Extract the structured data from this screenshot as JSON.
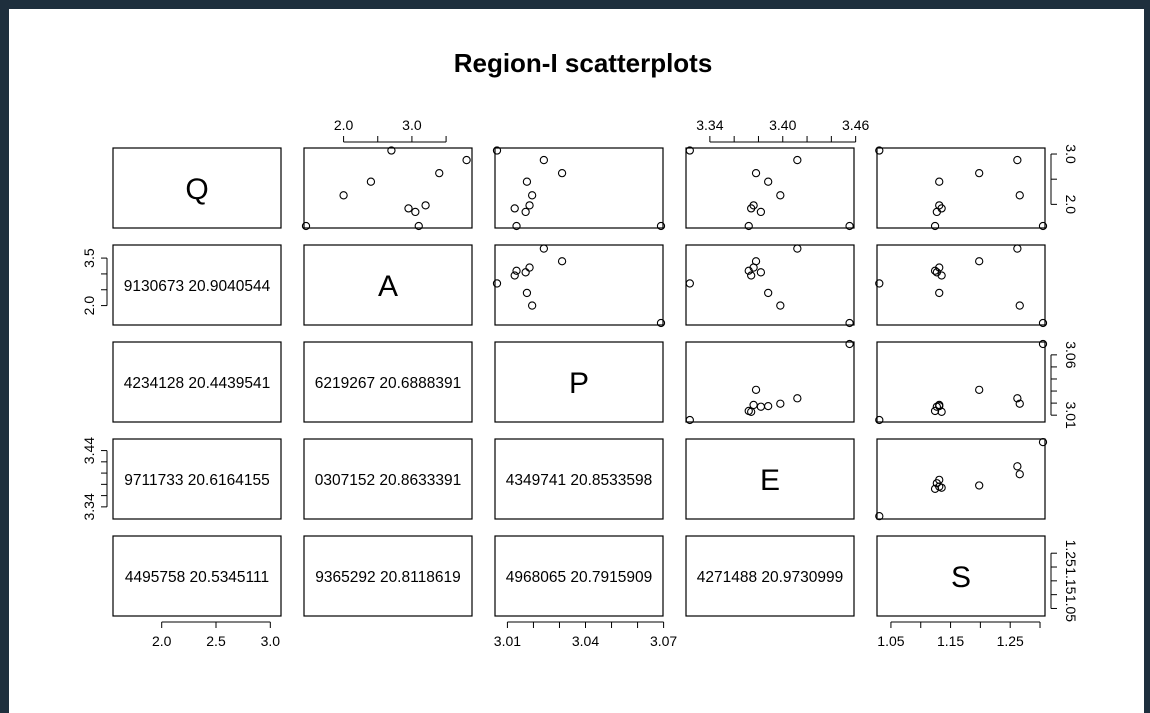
{
  "chart_data": {
    "type": "scatter",
    "title": "Region-I scatterplots",
    "variables": [
      "Q",
      "A",
      "P",
      "E",
      "S"
    ],
    "observations": {
      "Q": [
        1.57,
        1.85,
        1.92,
        1.98,
        2.18,
        2.45,
        2.62,
        2.88,
        3.07,
        1.57
      ],
      "A": [
        3.1,
        3.05,
        2.95,
        3.2,
        2.0,
        2.4,
        3.4,
        3.8,
        2.7,
        1.45
      ],
      "P": [
        3.0135,
        3.017,
        3.0128,
        3.0185,
        3.0195,
        3.0175,
        3.031,
        3.024,
        3.006,
        3.069
      ],
      "E": [
        3.372,
        3.382,
        3.374,
        3.376,
        3.398,
        3.388,
        3.378,
        3.412,
        3.3235,
        3.455
      ],
      "S": [
        1.124,
        1.127,
        1.135,
        1.131,
        1.266,
        1.131,
        1.198,
        1.262,
        1.0305,
        1.305
      ]
    },
    "pairs_shown": "lower-triangle panels print correlation text (truncated at panel edges); upper-triangle panels show pairwise scatter",
    "lower_panel_text": {
      "A_Q": "9130673 20.9040544",
      "P_Q": "4234128 20.4439541",
      "P_A": "6219267 20.6888391",
      "E_Q": "9711733 20.6164155",
      "E_A": "0307152 20.8633391",
      "E_P": "4349741 20.8533598",
      "S_Q": "4495758 20.5345111",
      "S_A": "9365292 20.8118619",
      "S_P": "4968065 20.7915909",
      "S_E": "4271488 20.9730999"
    },
    "axes": {
      "Q": {
        "ticks": [
          "2.0",
          "2.5",
          "3.0"
        ],
        "tick_values": [
          2.0,
          2.5,
          3.0
        ],
        "range": [
          1.57,
          3.08
        ]
      },
      "A": {
        "ticks": [
          "2.0",
          "3.5"
        ],
        "tick_values": [
          2.0,
          3.5
        ],
        "range": [
          1.45,
          3.85
        ]
      },
      "P": {
        "ticks": [
          "3.01",
          "3.04",
          "3.07"
        ],
        "tick_values": [
          3.01,
          3.04,
          3.07
        ],
        "range": [
          3.006,
          3.069
        ]
      },
      "E": {
        "ticks": [
          "3.34",
          "3.40",
          "3.46"
        ],
        "tick_values": [
          3.34,
          3.4,
          3.46
        ],
        "range": [
          3.322,
          3.457
        ]
      },
      "S": {
        "ticks": [
          "1.05",
          "1.15",
          "1.25"
        ],
        "tick_values": [
          1.05,
          1.15,
          1.25
        ],
        "range": [
          1.03,
          1.305
        ]
      }
    },
    "axis_label_placement": {
      "top": [
        "A",
        "E"
      ],
      "right": [
        "Q",
        "P",
        "S"
      ],
      "bottom": [
        "Q",
        "P",
        "S"
      ],
      "left": [
        "A",
        "E"
      ]
    },
    "right_axis_ticks": {
      "Q": [
        "2.0",
        "3.0"
      ],
      "P": [
        "3.01",
        "3.06"
      ],
      "S": [
        "1.05",
        "1.15",
        "1.25"
      ]
    },
    "top_axis_ticks": {
      "A": [
        "2.0",
        "3.0"
      ],
      "E": [
        "3.34",
        "3.40",
        "3.46"
      ]
    },
    "left_axis_ticks": {
      "A": [
        "2.0",
        "3.5"
      ],
      "E": [
        "3.34",
        "3.44"
      ]
    },
    "bottom_axis_ticks": {
      "Q": [
        "2.0",
        "2.5",
        "3.0"
      ],
      "P": [
        "3.01",
        "3.04",
        "3.07"
      ],
      "S": [
        "1.05",
        "1.15",
        "1.25"
      ]
    },
    "grid": false,
    "legend": "none"
  }
}
